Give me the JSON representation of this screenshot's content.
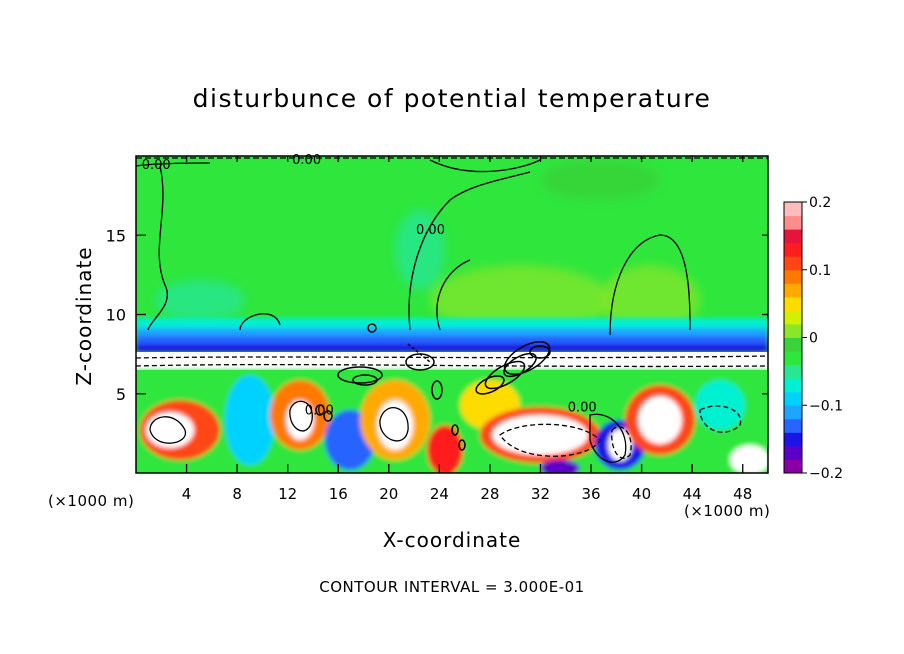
{
  "chart_data": {
    "type": "heatmap",
    "title": "disturbunce of potential temperature",
    "xlabel": "X-coordinate",
    "ylabel": "Z-coordinate",
    "x_unit_left": "(×1000 m)",
    "x_unit_right": "(×1000 m)",
    "footer": "CONTOUR INTERVAL = 3.000E-01",
    "xlim": [
      0,
      50
    ],
    "ylim": [
      0,
      20
    ],
    "x_ticks": [
      4,
      8,
      12,
      16,
      20,
      24,
      28,
      32,
      36,
      40,
      44,
      48
    ],
    "y_ticks": [
      5,
      10,
      15
    ],
    "colorbar": {
      "min": -0.2,
      "max": 0.2,
      "ticks": [
        {
          "value": 0.2,
          "label": "0.2"
        },
        {
          "value": 0.1,
          "label": "0.1"
        },
        {
          "value": 0,
          "label": "0"
        },
        {
          "value": -0.1,
          "label": "−0.1"
        },
        {
          "value": -0.2,
          "label": "−0.2"
        }
      ],
      "colors": [
        "#8b00a6",
        "#5a00c8",
        "#1a14e6",
        "#2864ff",
        "#1ea6ff",
        "#00d2ff",
        "#00f0d2",
        "#28e692",
        "#2ee63c",
        "#3ad23a",
        "#8ae628",
        "#d2f000",
        "#ffdc00",
        "#ffaa00",
        "#ff7800",
        "#ff4614",
        "#ff1e1e",
        "#e6143c",
        "#ff8c8c",
        "#ffbcbc"
      ]
    },
    "contour_labels": [
      {
        "x": 1.6,
        "z": 19.5,
        "text": "0.00"
      },
      {
        "x": 13.5,
        "z": 19.8,
        "text": "0.00"
      },
      {
        "x": 23.3,
        "z": 15.4,
        "text": "0.00"
      },
      {
        "x": 35.3,
        "z": 4.2,
        "text": "0.00"
      },
      {
        "x": 14.5,
        "z": 4.0,
        "text": "0.00"
      }
    ]
  }
}
